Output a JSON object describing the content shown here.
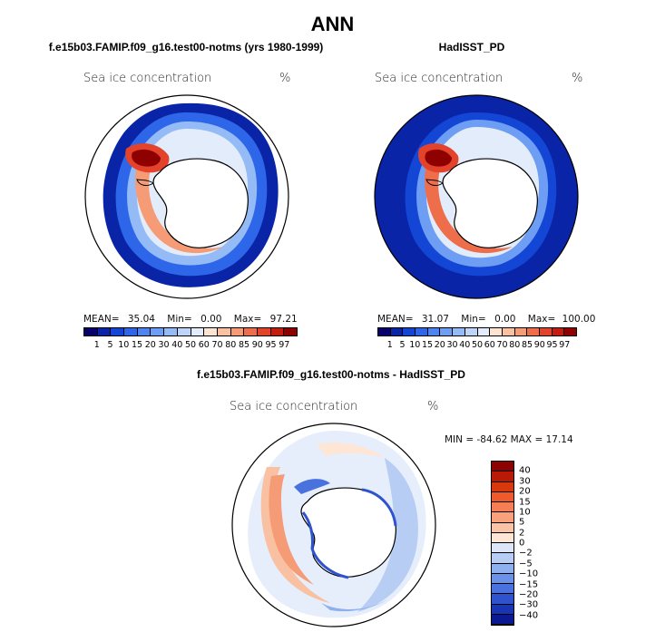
{
  "title": "ANN",
  "panels": [
    {
      "title": "f.e15b03.FAMIP.f09_g16.test00-notms (yrs 1980-1999)",
      "variable": "Sea ice concentration",
      "units": "%",
      "stats": {
        "mean_label": "MEAN=",
        "mean": "35.04",
        "min_label": "Min=",
        "min": "0.00",
        "max_label": "Max=",
        "max": "97.21"
      }
    },
    {
      "title": "HadISST_PD",
      "variable": "Sea ice concentration",
      "units": "%",
      "stats": {
        "mean_label": "MEAN=",
        "mean": "31.07",
        "min_label": "Min=",
        "min": "0.00",
        "max_label": "Max=",
        "max": "100.00"
      }
    }
  ],
  "colorbar": {
    "labels": [
      "1",
      "5",
      "10",
      "15",
      "20",
      "30",
      "40",
      "50",
      "60",
      "70",
      "80",
      "85",
      "90",
      "95",
      "97"
    ],
    "colors": [
      "#08006b",
      "#0a24a8",
      "#1446d6",
      "#2e66ea",
      "#4c84f2",
      "#6e9ef4",
      "#95bbf6",
      "#bdd6f8",
      "#e2ecfa",
      "#fde4d0",
      "#f9c1a1",
      "#f59b75",
      "#ee6e4c",
      "#e3432a",
      "#c61c10",
      "#8f0000"
    ]
  },
  "diff_panel": {
    "title": "f.e15b03.FAMIP.f09_g16.test00-notms - HadISST_PD",
    "variable": "Sea ice concentration",
    "units": "%",
    "minmax": "MIN = -84.62 MAX =  17.14",
    "colorbar_labels": [
      "40",
      "30",
      "20",
      "15",
      "10",
      "5",
      "2",
      "0",
      "−2",
      "−5",
      "−10",
      "−15",
      "−20",
      "−30",
      "−40"
    ],
    "colorbar_colors": [
      "#8f0000",
      "#b81a06",
      "#d8380e",
      "#ee5a2c",
      "#f67e54",
      "#f9a07c",
      "#fbc3a5",
      "#fde6d6",
      "#dbe6f8",
      "#b7cdf4",
      "#8fb0ee",
      "#6a92e8",
      "#4a72de",
      "#2f52cf",
      "#1835b6",
      "#0b1a90"
    ]
  }
}
